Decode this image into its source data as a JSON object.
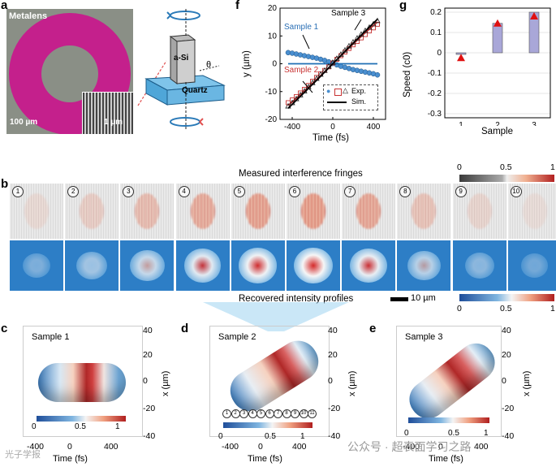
{
  "panels": {
    "a": {
      "letter": "a",
      "title": "Metalens",
      "scale1": "100 µm",
      "scale2": "1 µm",
      "asi": "a-Si",
      "quartz": "Quartz",
      "theta": "θ"
    },
    "f": {
      "letter": "f",
      "sample1": "Sample 1",
      "sample2": "Sample 2",
      "sample3": "Sample 3",
      "legend_exp": "Exp.",
      "legend_sim": "Sim.",
      "xlabel": "Time (fs)",
      "ylabel": "y (µm)"
    },
    "g": {
      "letter": "g",
      "xlabel": "Sample",
      "ylabel": "Speed (c0)"
    },
    "b": {
      "letter": "b",
      "title_top": "Measured interference fringes",
      "title_bottom": "Recovered intensity profiles",
      "scale": "10 µm",
      "numbers": [
        "1",
        "2",
        "3",
        "4",
        "5",
        "6",
        "7",
        "8",
        "9",
        "10"
      ],
      "cb_ticks": [
        "0",
        "0.5",
        "1"
      ]
    },
    "c": {
      "letter": "c",
      "title": "Sample 1"
    },
    "d": {
      "letter": "d",
      "title": "Sample 2",
      "numbers": [
        "1",
        "2",
        "3",
        "4",
        "5",
        "6",
        "7",
        "8",
        "9",
        "10",
        "11"
      ]
    },
    "e": {
      "letter": "e",
      "title": "Sample 3"
    },
    "surface_axes": {
      "x_ticks": [
        "-400",
        "0",
        "400"
      ],
      "y_ticks": [
        "40",
        "20",
        "0",
        "-20",
        "-40"
      ],
      "xlabel": "Time (fs)",
      "ylabel": "x (µm)",
      "cb_ticks": [
        "0",
        "0.5",
        "1"
      ]
    }
  },
  "watermark": {
    "text": "公众号 · 超表面学习之路",
    "left": "光子学报"
  },
  "chart_data": [
    {
      "type": "line",
      "id": "f",
      "xlabel": "Time (fs)",
      "ylabel": "y (µm)",
      "xlim": [
        -520,
        520
      ],
      "ylim": [
        -20,
        20
      ],
      "x_ticks": [
        -400,
        0,
        400
      ],
      "y_ticks": [
        20,
        10,
        0,
        -10,
        -20
      ],
      "series": [
        {
          "name": "Sample 1 Exp.",
          "marker": "circle",
          "color": "#4a8fd0",
          "x": [
            -440,
            -400,
            -360,
            -320,
            -280,
            -240,
            -200,
            -160,
            -120,
            -80,
            -40,
            0,
            40,
            80,
            120,
            160,
            200,
            240,
            280,
            320,
            360,
            400,
            440
          ],
          "y": [
            4.0,
            3.8,
            3.5,
            3.2,
            2.9,
            2.6,
            2.3,
            2.0,
            1.6,
            1.2,
            0.7,
            0.1,
            -0.4,
            -0.9,
            -1.3,
            -1.7,
            -2.1,
            -2.4,
            -2.7,
            -3.0,
            -3.3,
            -3.6,
            -4.0
          ]
        },
        {
          "name": "Sample 1 Sim.",
          "color": "#1f6fb5",
          "x": [
            -440,
            440
          ],
          "y": [
            0,
            0
          ]
        },
        {
          "name": "Sample 2 Exp.",
          "marker": "square",
          "color": "#c83232",
          "x": [
            -440,
            -400,
            -360,
            -320,
            -280,
            -240,
            -200,
            -160,
            -120,
            -80,
            -40,
            0,
            40,
            80,
            120,
            160,
            200,
            240,
            280,
            320,
            360,
            400,
            440
          ],
          "y": [
            -14,
            -13,
            -11.8,
            -10.5,
            -9.2,
            -7.8,
            -6.3,
            -4.9,
            -3.6,
            -2.4,
            -1.1,
            0.3,
            1.6,
            2.9,
            4.2,
            5.5,
            6.8,
            8.0,
            9.3,
            10.5,
            11.8,
            12.9,
            14.2
          ]
        },
        {
          "name": "Sample 2 Sim.",
          "color": "#c83232",
          "x": [
            -440,
            -300,
            -150,
            0,
            150,
            300,
            440
          ],
          "y": [
            -15,
            -10.5,
            -5.3,
            0,
            5.3,
            10.5,
            15
          ]
        },
        {
          "name": "Sample 3 Exp.",
          "marker": "triangle",
          "color": "#222",
          "x": [
            -440,
            -400,
            -360,
            -320,
            -280,
            -240,
            -200,
            -160,
            -120,
            -80,
            -40,
            0,
            40,
            80,
            120,
            160,
            200,
            240,
            280,
            320,
            360,
            400,
            440
          ],
          "y": [
            -15.2,
            -14.0,
            -12.6,
            -11.2,
            -9.8,
            -8.3,
            -6.8,
            -5.3,
            -3.8,
            -2.4,
            -0.9,
            0.5,
            1.9,
            3.4,
            4.9,
            6.4,
            7.8,
            9.2,
            10.6,
            11.9,
            13.1,
            14.3,
            15.5
          ]
        },
        {
          "name": "Sample 3 Sim.",
          "color": "#000",
          "x": [
            -440,
            -300,
            -150,
            0,
            150,
            300,
            440
          ],
          "y": [
            -16,
            -11,
            -5.6,
            0,
            5.6,
            11,
            16
          ]
        }
      ]
    },
    {
      "type": "bar",
      "id": "g",
      "xlabel": "Sample",
      "ylabel": "Speed (c0)",
      "ylim": [
        -0.32,
        0.22
      ],
      "y_ticks": [
        0.2,
        0.1,
        0,
        -0.1,
        -0.2,
        -0.3
      ],
      "categories": [
        "1",
        "2",
        "3"
      ],
      "values": [
        0.0,
        0.145,
        0.2
      ],
      "measured": [
        -0.025,
        0.145,
        0.18
      ]
    }
  ]
}
